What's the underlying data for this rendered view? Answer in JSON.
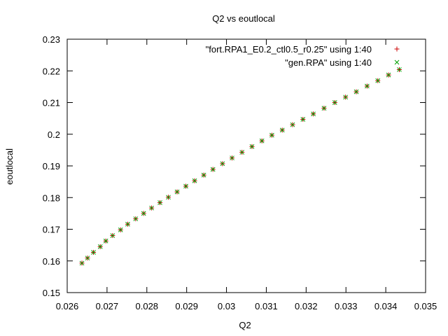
{
  "chart_data": {
    "type": "scatter",
    "title": "Q2 vs eoutlocal",
    "xlabel": "Q2",
    "ylabel": "eoutlocal",
    "xlim": [
      0.026,
      0.035
    ],
    "ylim": [
      0.15,
      0.23
    ],
    "xticks": [
      0.026,
      0.027,
      0.028,
      0.029,
      0.03,
      0.031,
      0.032,
      0.033,
      0.034,
      0.035
    ],
    "xtick_labels": [
      "0.026",
      "0.027",
      "0.028",
      "0.029",
      "0.03",
      "0.031",
      "0.032",
      "0.033",
      "0.034",
      "0.035"
    ],
    "yticks": [
      0.15,
      0.16,
      0.17,
      0.18,
      0.19,
      0.2,
      0.21,
      0.22,
      0.23
    ],
    "ytick_labels": [
      "0.15",
      "0.16",
      "0.17",
      "0.18",
      "0.19",
      "0.2",
      "0.21",
      "0.22",
      "0.23"
    ],
    "grid": false,
    "legend_position": "top-right",
    "series": [
      {
        "name": "\"fort.RPA1_E0.2_ctl0.5_r0.25\" using 1:40",
        "marker": "plus",
        "color": "#cc0000",
        "points": [
          [
            0.02637,
            0.1593
          ],
          [
            0.02651,
            0.1609
          ],
          [
            0.02666,
            0.1627
          ],
          [
            0.02683,
            0.1645
          ],
          [
            0.02697,
            0.1663
          ],
          [
            0.02714,
            0.168
          ],
          [
            0.02734,
            0.1698
          ],
          [
            0.02752,
            0.1716
          ],
          [
            0.02772,
            0.1733
          ],
          [
            0.02792,
            0.175
          ],
          [
            0.02812,
            0.1767
          ],
          [
            0.02833,
            0.1784
          ],
          [
            0.02854,
            0.1801
          ],
          [
            0.02876,
            0.1818
          ],
          [
            0.02898,
            0.1836
          ],
          [
            0.0292,
            0.1853
          ],
          [
            0.02943,
            0.1871
          ],
          [
            0.02966,
            0.1889
          ],
          [
            0.0299,
            0.1907
          ],
          [
            0.03014,
            0.1925
          ],
          [
            0.03039,
            0.1943
          ],
          [
            0.03064,
            0.1961
          ],
          [
            0.03089,
            0.1979
          ],
          [
            0.03114,
            0.1997
          ],
          [
            0.0314,
            0.2013
          ],
          [
            0.03166,
            0.203
          ],
          [
            0.03192,
            0.2047
          ],
          [
            0.03218,
            0.2064
          ],
          [
            0.03245,
            0.2082
          ],
          [
            0.03272,
            0.21
          ],
          [
            0.03299,
            0.2117
          ],
          [
            0.03326,
            0.2134
          ],
          [
            0.03353,
            0.2152
          ],
          [
            0.0338,
            0.2169
          ],
          [
            0.03407,
            0.2187
          ],
          [
            0.03434,
            0.2204
          ]
        ]
      },
      {
        "name": "\"gen.RPA\" using 1:40",
        "marker": "cross",
        "color": "#00a000",
        "points": [
          [
            0.02637,
            0.1593
          ],
          [
            0.02651,
            0.1609
          ],
          [
            0.02666,
            0.1627
          ],
          [
            0.02683,
            0.1645
          ],
          [
            0.02697,
            0.1663
          ],
          [
            0.02714,
            0.168
          ],
          [
            0.02734,
            0.1698
          ],
          [
            0.02752,
            0.1716
          ],
          [
            0.02772,
            0.1733
          ],
          [
            0.02792,
            0.175
          ],
          [
            0.02812,
            0.1767
          ],
          [
            0.02833,
            0.1784
          ],
          [
            0.02854,
            0.1801
          ],
          [
            0.02876,
            0.1818
          ],
          [
            0.02898,
            0.1836
          ],
          [
            0.0292,
            0.1853
          ],
          [
            0.02943,
            0.1871
          ],
          [
            0.02966,
            0.1889
          ],
          [
            0.0299,
            0.1907
          ],
          [
            0.03014,
            0.1925
          ],
          [
            0.03039,
            0.1943
          ],
          [
            0.03064,
            0.1961
          ],
          [
            0.03089,
            0.1979
          ],
          [
            0.03114,
            0.1997
          ],
          [
            0.0314,
            0.2013
          ],
          [
            0.03166,
            0.203
          ],
          [
            0.03192,
            0.2047
          ],
          [
            0.03218,
            0.2064
          ],
          [
            0.03245,
            0.2082
          ],
          [
            0.03272,
            0.21
          ],
          [
            0.03299,
            0.2117
          ],
          [
            0.03326,
            0.2134
          ],
          [
            0.03353,
            0.2152
          ],
          [
            0.0338,
            0.2169
          ],
          [
            0.03407,
            0.2187
          ],
          [
            0.03434,
            0.2204
          ]
        ]
      }
    ]
  }
}
